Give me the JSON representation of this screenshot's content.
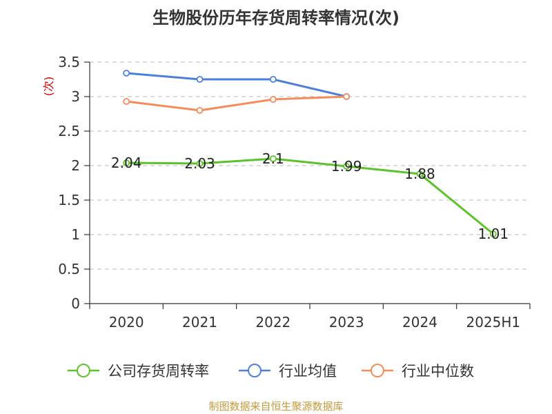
{
  "title": "生物股份历年存货周转率情况(次)",
  "source": "制图数据来自恒生聚源数据库",
  "colors": {
    "company": "#5cc22a",
    "industry_avg": "#4a7fdb",
    "industry_median": "#f58a5a",
    "unit_label": "#cc0000"
  },
  "chart_data": {
    "type": "line",
    "title": "生物股份历年存货周转率情况(次)",
    "ylabel": "(次)",
    "xlabel": "",
    "ylim": [
      0,
      3.5
    ],
    "y_ticks": [
      "0",
      "0.5",
      "1",
      "1.5",
      "2",
      "2.5",
      "3",
      "3.5"
    ],
    "categories": [
      "2020",
      "2021",
      "2022",
      "2023",
      "2024",
      "2025H1"
    ],
    "grid": true,
    "legend_position": "bottom",
    "series": [
      {
        "name": "公司存货周转率",
        "values": [
          2.04,
          2.03,
          2.1,
          1.99,
          1.88,
          1.01
        ],
        "labels": [
          "2.04",
          "2.03",
          "2.1",
          "1.99",
          "1.88",
          "1.01"
        ]
      },
      {
        "name": "行业均值",
        "values": [
          3.34,
          3.25,
          3.25,
          3.0,
          null,
          null
        ]
      },
      {
        "name": "行业中位数",
        "values": [
          2.93,
          2.8,
          2.96,
          3.0,
          null,
          null
        ]
      }
    ]
  }
}
